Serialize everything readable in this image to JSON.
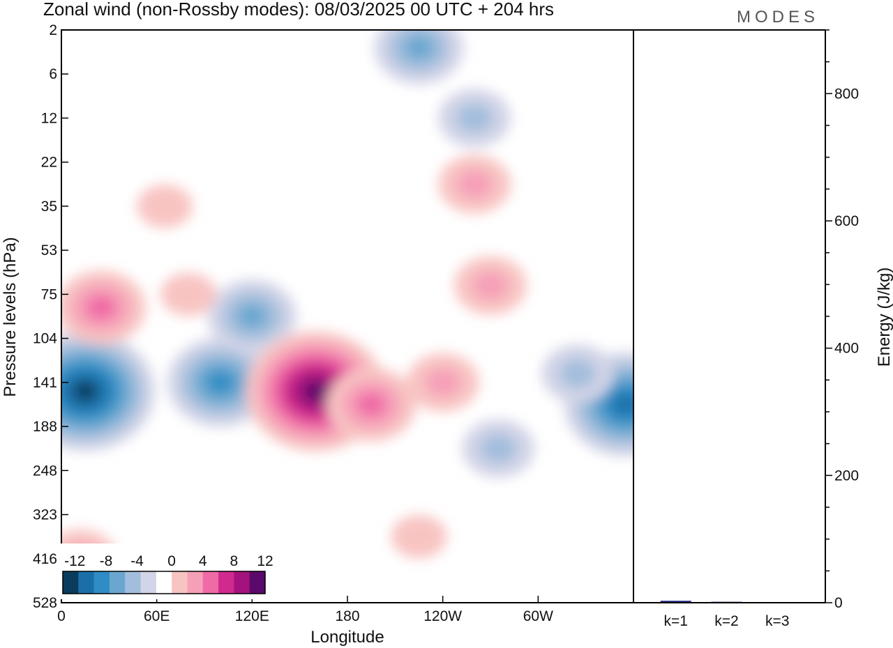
{
  "title": "Zonal wind (non-Rossby modes):  08/03/2025  00 UTC  + 204 hrs",
  "brand": "MODES",
  "colors": {
    "neg": [
      "#0b3c5d",
      "#1a6fa8",
      "#2f8cc4",
      "#6aa7d0",
      "#a3bedc",
      "#d2d4e7"
    ],
    "pos": [
      "#f8c4c2",
      "#f6a0b8",
      "#ef6aa6",
      "#d12a8e",
      "#a4127e",
      "#5a0a6a"
    ],
    "bar": "#1a237e"
  },
  "chart_data": [
    {
      "type": "heatmap",
      "name": "zonal-wind-section",
      "xlabel": "Longitude",
      "ylabel": "Pressure levels (hPa)",
      "x_ticks": [
        "0",
        "60E",
        "120E",
        "180",
        "120W",
        "60W"
      ],
      "x_tick_degrees": [
        0,
        60,
        120,
        180,
        240,
        300
      ],
      "xlim": [
        0,
        360
      ],
      "y_levels": [
        "2",
        "6",
        "12",
        "22",
        "35",
        "53",
        "75",
        "104",
        "141",
        "188",
        "248",
        "323",
        "416",
        "528"
      ],
      "colorbar_labels": [
        "-12",
        "-8",
        "-4",
        "0",
        "4",
        "8",
        "12"
      ],
      "colorbar_levels": [
        -14,
        -12,
        -10,
        -8,
        -6,
        -4,
        -2,
        2,
        4,
        6,
        8,
        10,
        12,
        14
      ],
      "features": [
        {
          "lon": 15,
          "level_index": 8.2,
          "value": -12
        },
        {
          "lon": 100,
          "level_index": 8.0,
          "value": -9
        },
        {
          "lon": 120,
          "level_index": 6.5,
          "value": -6
        },
        {
          "lon": 355,
          "level_index": 8.5,
          "value": -11
        },
        {
          "lon": 325,
          "level_index": 7.8,
          "value": -5
        },
        {
          "lon": 275,
          "level_index": 9.5,
          "value": -5
        },
        {
          "lon": 225,
          "level_index": 0.4,
          "value": -7
        },
        {
          "lon": 260,
          "level_index": 2.0,
          "value": -5
        },
        {
          "lon": 160,
          "level_index": 8.2,
          "value": 13
        },
        {
          "lon": 195,
          "level_index": 8.5,
          "value": 7
        },
        {
          "lon": 240,
          "level_index": 8.0,
          "value": 4
        },
        {
          "lon": 225,
          "level_index": 11.5,
          "value": 3
        },
        {
          "lon": 25,
          "level_index": 6.3,
          "value": 6
        },
        {
          "lon": 12,
          "level_index": 12.0,
          "value": 4
        },
        {
          "lon": 260,
          "level_index": 3.5,
          "value": 5
        },
        {
          "lon": 270,
          "level_index": 5.8,
          "value": 5
        },
        {
          "lon": 80,
          "level_index": 6.0,
          "value": 3
        },
        {
          "lon": 65,
          "level_index": 4.0,
          "value": 3
        }
      ]
    },
    {
      "type": "bar",
      "name": "energy-by-wavenumber",
      "categories": [
        "k=1",
        "k=2",
        "k=3"
      ],
      "values": [
        3,
        1.5,
        1
      ],
      "ylabel": "Energy (J/kg)",
      "ylim": [
        0,
        900
      ],
      "y_ticks": [
        0,
        200,
        400,
        600,
        800
      ]
    }
  ]
}
